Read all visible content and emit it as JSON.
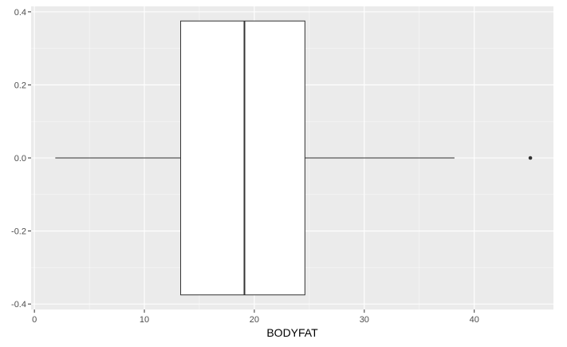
{
  "chart_data": {
    "type": "boxplot",
    "orientation": "horizontal",
    "title": "",
    "xlabel": "BODYFAT",
    "ylabel": "",
    "xlim": [
      -0.3,
      47.2
    ],
    "ylim": [
      -0.415,
      0.415
    ],
    "x_ticks": [
      0,
      10,
      20,
      30,
      40
    ],
    "x_tick_labels": [
      "0",
      "10",
      "20",
      "30",
      "40"
    ],
    "y_ticks": [
      -0.4,
      -0.2,
      0.0,
      0.2,
      0.4
    ],
    "y_tick_labels": [
      "-0.4",
      "-0.2",
      "0.0",
      "0.2",
      "0.4"
    ],
    "grid": true,
    "box": {
      "min": 1.9,
      "q1": 13.3,
      "median": 19.1,
      "q3": 24.6,
      "max": 38.2,
      "y_center": 0.0,
      "half_height": 0.375
    },
    "outliers": [
      45.1
    ],
    "colors": {
      "panel_background": "#ebebeb",
      "grid_major": "#ffffff",
      "box_fill": "#ffffff",
      "box_stroke": "#333333",
      "outlier": "#333333"
    }
  }
}
